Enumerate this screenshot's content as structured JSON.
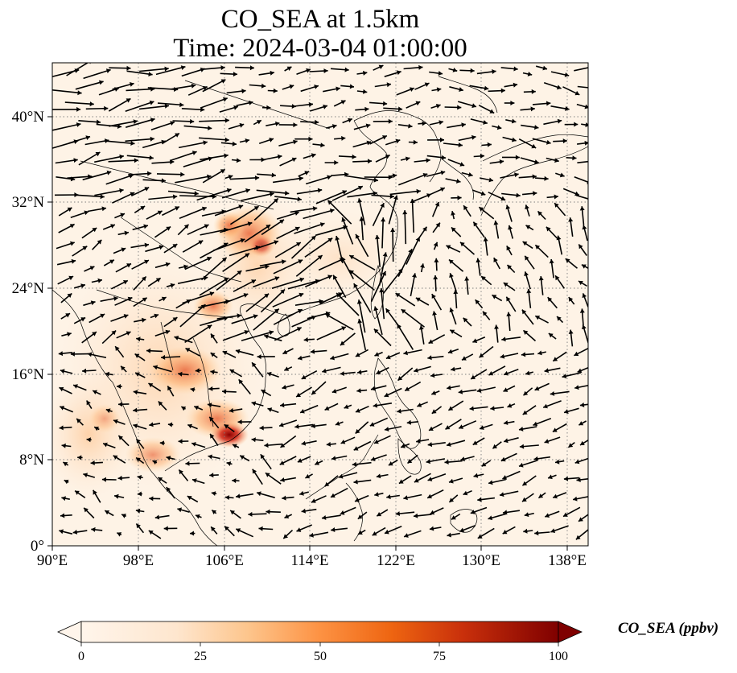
{
  "title": {
    "line1": "CO_SEA at 1.5km",
    "line2": "Time: 2024-03-04 01:00:00"
  },
  "map": {
    "lon_range": [
      90,
      140
    ],
    "lat_range": [
      0,
      45
    ],
    "x_ticks": [
      "90°E",
      "98°E",
      "106°E",
      "114°E",
      "122°E",
      "130°E",
      "138°E"
    ],
    "y_ticks": [
      "0°",
      "8°N",
      "16°N",
      "24°N",
      "32°N",
      "40°N"
    ],
    "gridlines": "dotted",
    "field": "CO concentration",
    "wind_vectors": "quiver arrows"
  },
  "colorbar": {
    "label": "CO_SEA (ppbv)",
    "ticks": [
      "0",
      "25",
      "50",
      "75",
      "100"
    ],
    "range": [
      0,
      100
    ],
    "colormap": [
      "#fff5eb",
      "#fdd49e",
      "#fdae6b",
      "#f16913",
      "#d7301f",
      "#7f0000"
    ],
    "extend": "both"
  }
}
